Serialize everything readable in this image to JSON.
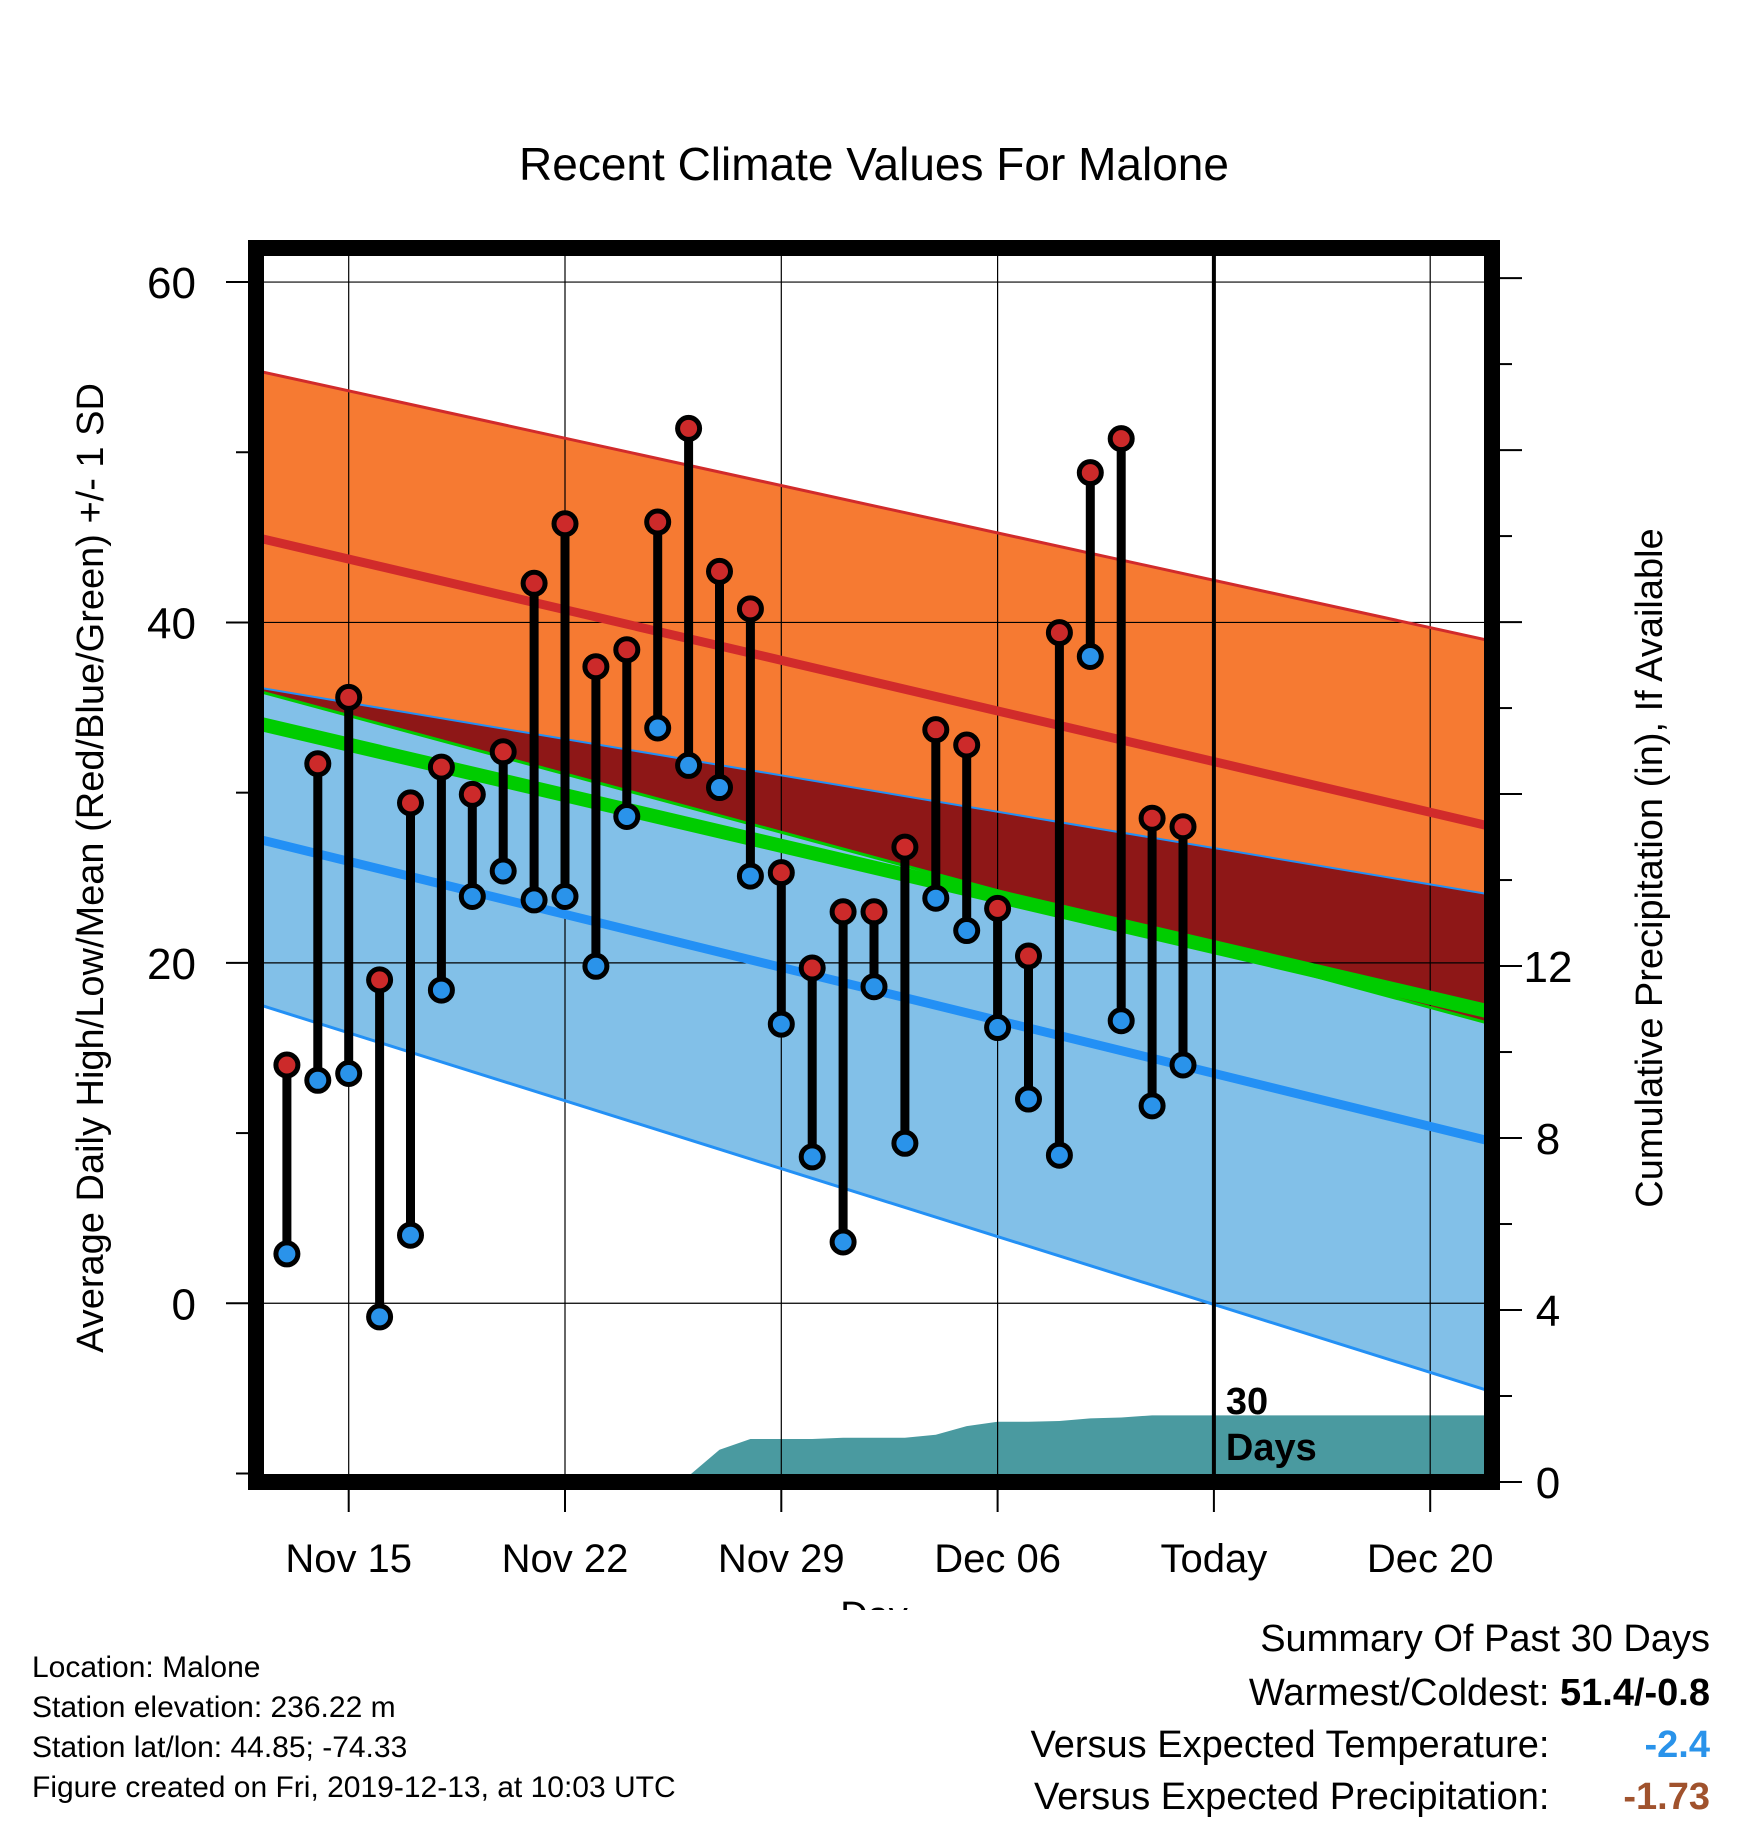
{
  "chart_data": {
    "type": "line",
    "title": "Recent Climate Values For Malone",
    "xlabel": "Day",
    "ylabel": "Average Daily High/Low/Mean (Red/Blue/Green) +/- 1 SD",
    "y2label": "Cumulative Precipitation (in), If Available",
    "ylim": [
      -10.5,
      62
    ],
    "y2lim": [
      0,
      28.7
    ],
    "yticks": [
      "0",
      "20",
      "40",
      "60"
    ],
    "y2ticks": [
      "0",
      "4",
      "8",
      "12"
    ],
    "xticks": [
      "Nov 15",
      "Nov 22",
      "Nov 29",
      "Dec 06",
      "Today",
      "Dec 20"
    ],
    "today_label": "30\nDays",
    "grid": true,
    "days": [
      "Nov 13",
      "Nov 14",
      "Nov 15",
      "Nov 16",
      "Nov 17",
      "Nov 18",
      "Nov 19",
      "Nov 20",
      "Nov 21",
      "Nov 22",
      "Nov 23",
      "Nov 24",
      "Nov 25",
      "Nov 26",
      "Nov 27",
      "Nov 28",
      "Nov 29",
      "Nov 30",
      "Dec 01",
      "Dec 02",
      "Dec 03",
      "Dec 04",
      "Dec 05",
      "Dec 06",
      "Dec 07",
      "Dec 08",
      "Dec 09",
      "Dec 10",
      "Dec 11",
      "Dec 12"
    ],
    "daily_high": [
      14.0,
      31.7,
      35.6,
      19.0,
      29.4,
      31.5,
      29.9,
      32.4,
      42.3,
      45.8,
      37.4,
      38.4,
      45.9,
      51.4,
      43.0,
      40.8,
      25.3,
      19.7,
      23.0,
      23.0,
      26.8,
      33.7,
      32.8,
      23.2,
      20.4,
      39.4,
      48.8,
      50.8,
      28.5,
      28.0
    ],
    "daily_low": [
      2.9,
      13.1,
      13.5,
      -0.8,
      4.0,
      18.4,
      23.9,
      25.4,
      23.7,
      23.9,
      19.8,
      28.6,
      33.8,
      31.6,
      30.3,
      25.1,
      16.4,
      8.6,
      3.6,
      18.6,
      9.4,
      23.8,
      21.9,
      16.2,
      12.0,
      8.7,
      38.0,
      16.6,
      11.6,
      14.0
    ],
    "normals": {
      "x": [
        "Nov 12",
        "Dec 22"
      ],
      "high_plus_sd": [
        54.8,
        38.9
      ],
      "high_mean": [
        45.0,
        28.0
      ],
      "high_minus_sd": [
        36.2,
        24.0
      ],
      "mean": [
        34.1,
        17.1
      ],
      "low_plus_sd": [
        36.0,
        16.4
      ],
      "low_mean": [
        27.3,
        9.5
      ],
      "low_minus_sd": [
        17.6,
        -5.2
      ]
    },
    "cumulative_precip": {
      "x": [
        "Nov 12",
        "Nov 20",
        "Nov 21",
        "Nov 22",
        "Nov 23",
        "Nov 24",
        "Nov 25",
        "Nov 26",
        "Nov 27",
        "Nov 28",
        "Nov 29",
        "Nov 30",
        "Dec 01",
        "Dec 02",
        "Dec 03",
        "Dec 04",
        "Dec 05",
        "Dec 06",
        "Dec 07",
        "Dec 08",
        "Dec 09",
        "Dec 10",
        "Dec 11",
        "Dec 12",
        "Dec 22"
      ],
      "values": [
        0.0,
        0.0,
        0.05,
        0.14,
        0.14,
        0.14,
        0.14,
        0.14,
        0.75,
        1.0,
        1.0,
        1.0,
        1.03,
        1.03,
        1.03,
        1.1,
        1.3,
        1.4,
        1.4,
        1.42,
        1.48,
        1.5,
        1.55,
        1.55,
        1.55
      ]
    },
    "colors": {
      "high_band": "#f67a32",
      "high_line": "#d12b2b",
      "overlap_band": "#8e1717",
      "mean_line": "#00cc00",
      "low_band": "#82c0e8",
      "low_line": "#2390f5",
      "precip": "#4a9aa0",
      "high_marker": "#cc2a2a",
      "low_marker": "#2a93ea"
    }
  },
  "info": {
    "location": "Location: Malone",
    "elevation": "Station elevation: 236.22 m",
    "latlon": "Station lat/lon: 44.85; -74.33",
    "created": "Figure created on Fri, 2019-12-13, at 10:03 UTC"
  },
  "summary": {
    "title": "Summary Of Past 30 Days",
    "warmest_coldest_label": "Warmest/Coldest:",
    "warmest_coldest_value": "51.4/-0.8",
    "temp_label": "Versus Expected Temperature:",
    "temp_value": "-2.4",
    "temp_color": "#2a93ea",
    "precip_label": "Versus Expected Precipitation:",
    "precip_value": "-1.73",
    "precip_color": "#a0522d"
  }
}
